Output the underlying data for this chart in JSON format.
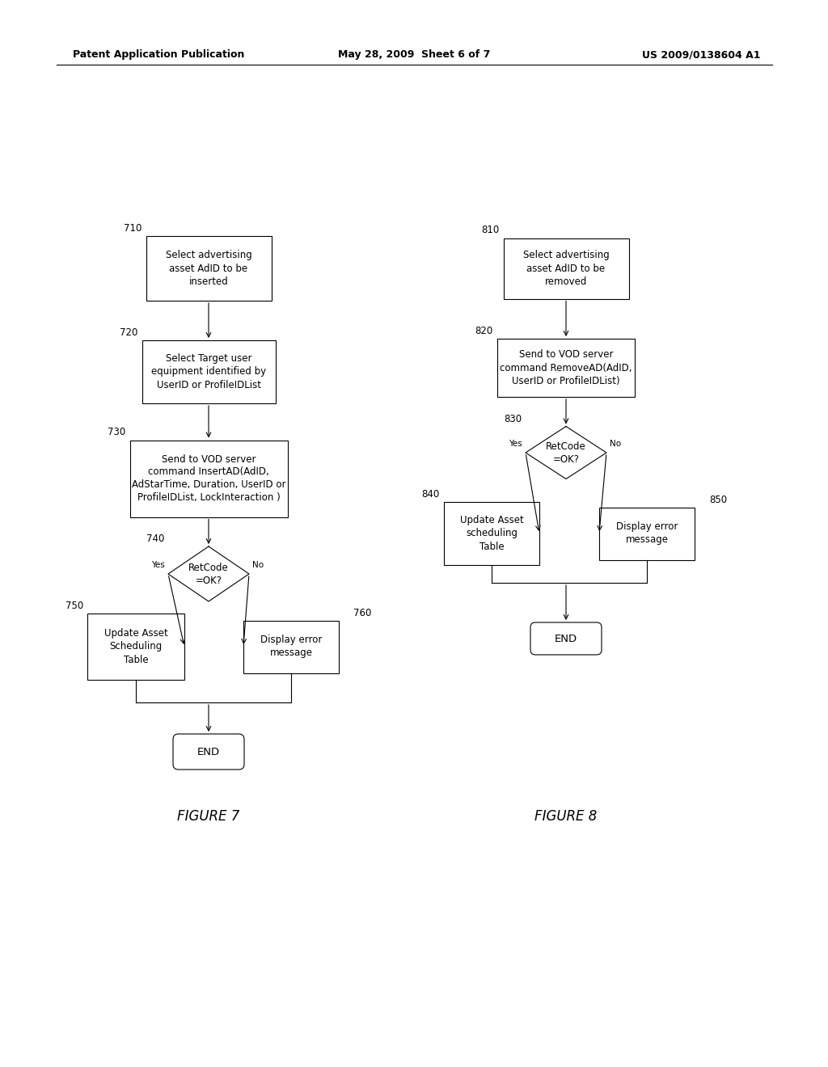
{
  "header_left": "Patent Application Publication",
  "header_mid": "May 28, 2009  Sheet 6 of 7",
  "header_right": "US 2009/0138604 A1",
  "fig7_label": "FIGURE 7",
  "fig8_label": "FIGURE 8",
  "bg_color": "#ffffff",
  "line_color": "#000000",
  "text_color": "#000000",
  "font_size": 8.5
}
